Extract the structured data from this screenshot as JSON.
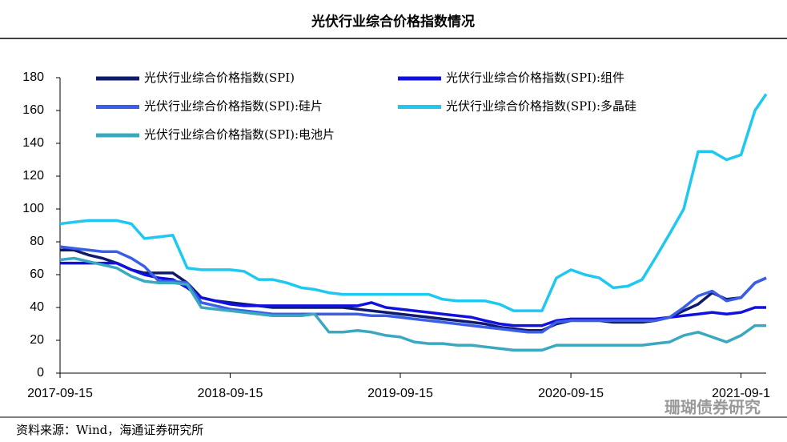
{
  "chart_data": {
    "type": "line",
    "title": "光伏行业综合价格指数情况",
    "x": [
      "2017-09-15",
      "2017-10-15",
      "2017-11-15",
      "2017-12-15",
      "2018-01-15",
      "2018-02-15",
      "2018-03-15",
      "2018-04-15",
      "2018-05-15",
      "2018-06-15",
      "2018-07-15",
      "2018-08-15",
      "2018-09-15",
      "2018-10-15",
      "2018-11-15",
      "2018-12-15",
      "2019-01-15",
      "2019-02-15",
      "2019-03-15",
      "2019-04-15",
      "2019-05-15",
      "2019-06-15",
      "2019-07-15",
      "2019-08-15",
      "2019-09-15",
      "2019-10-15",
      "2019-11-15",
      "2019-12-15",
      "2020-01-15",
      "2020-02-15",
      "2020-03-15",
      "2020-04-15",
      "2020-05-15",
      "2020-06-15",
      "2020-07-15",
      "2020-08-15",
      "2020-09-15",
      "2020-10-15",
      "2020-11-15",
      "2020-12-15",
      "2021-01-15",
      "2021-02-15",
      "2021-03-15",
      "2021-04-15",
      "2021-05-15",
      "2021-06-15",
      "2021-07-15",
      "2021-08-15",
      "2021-09-15",
      "2021-10-15",
      "2021-11-08"
    ],
    "xlim": [
      "2017-09-15",
      "2021-11-08"
    ],
    "xticks": [
      "2017-09-15",
      "2018-09-15",
      "2019-09-15",
      "2020-09-15",
      {
        "value": "2021-09-15",
        "label": "2021-09-1"
      }
    ],
    "ylim": [
      0,
      180
    ],
    "yticks": [
      0,
      20,
      40,
      60,
      80,
      100,
      120,
      140,
      160,
      180
    ],
    "legend": "upper-left",
    "series": [
      {
        "name": "光伏行业综合价格指数(SPI)",
        "color": "#0d1a6e",
        "values": [
          75,
          75,
          72,
          70,
          67,
          63,
          61,
          61,
          61,
          55,
          46,
          44,
          43,
          42,
          41,
          40,
          40,
          40,
          40,
          40,
          40,
          39,
          38,
          37,
          36,
          35,
          34,
          33,
          32,
          31,
          30,
          28,
          27,
          26,
          26,
          30,
          32,
          32,
          32,
          31,
          31,
          31,
          32,
          34,
          38,
          42,
          49,
          45,
          46,
          55,
          58
        ]
      },
      {
        "name": "光伏行业综合价格指数(SPI):组件",
        "color": "#1010e0",
        "values": [
          67,
          67,
          67,
          67,
          67,
          63,
          60,
          58,
          57,
          52,
          46,
          44,
          42,
          41,
          41,
          41,
          41,
          41,
          41,
          41,
          41,
          41,
          43,
          40,
          39,
          38,
          37,
          36,
          35,
          34,
          32,
          30,
          29,
          29,
          29,
          32,
          33,
          33,
          33,
          33,
          33,
          33,
          33,
          34,
          35,
          36,
          37,
          36,
          37,
          40,
          40
        ]
      },
      {
        "name": "光伏行业综合价格指数(SPI):硅片",
        "color": "#3a5ee8",
        "values": [
          77,
          76,
          75,
          74,
          74,
          70,
          65,
          56,
          56,
          55,
          43,
          41,
          39,
          38,
          37,
          36,
          36,
          36,
          36,
          36,
          36,
          36,
          35,
          35,
          34,
          33,
          32,
          31,
          30,
          29,
          28,
          27,
          26,
          25,
          25,
          31,
          32,
          32,
          32,
          32,
          32,
          32,
          32,
          34,
          40,
          47,
          50,
          44,
          46,
          55,
          58
        ]
      },
      {
        "name": "光伏行业综合价格指数(SPI):多晶硅",
        "color": "#1ec8f0",
        "values": [
          91,
          92,
          93,
          93,
          93,
          91,
          82,
          83,
          84,
          64,
          63,
          63,
          63,
          62,
          57,
          57,
          55,
          52,
          51,
          49,
          48,
          48,
          48,
          48,
          48,
          48,
          48,
          45,
          44,
          44,
          44,
          42,
          38,
          38,
          38,
          58,
          63,
          60,
          58,
          52,
          53,
          57,
          70,
          85,
          100,
          135,
          135,
          130,
          133,
          160,
          170
        ]
      },
      {
        "name": "光伏行业综合价格指数(SPI):电池片",
        "color": "#3aa8c0",
        "values": [
          69,
          70,
          68,
          66,
          64,
          59,
          56,
          55,
          55,
          54,
          40,
          39,
          38,
          37,
          36,
          35,
          35,
          35,
          36,
          25,
          25,
          26,
          25,
          23,
          22,
          19,
          18,
          18,
          17,
          17,
          16,
          15,
          14,
          14,
          14,
          17,
          17,
          17,
          17,
          17,
          17,
          17,
          18,
          19,
          23,
          25,
          22,
          19,
          23,
          29,
          29
        ]
      }
    ]
  },
  "source": "资料来源：Wind，海通证券研究所",
  "watermark": "珊瑚债券研究"
}
